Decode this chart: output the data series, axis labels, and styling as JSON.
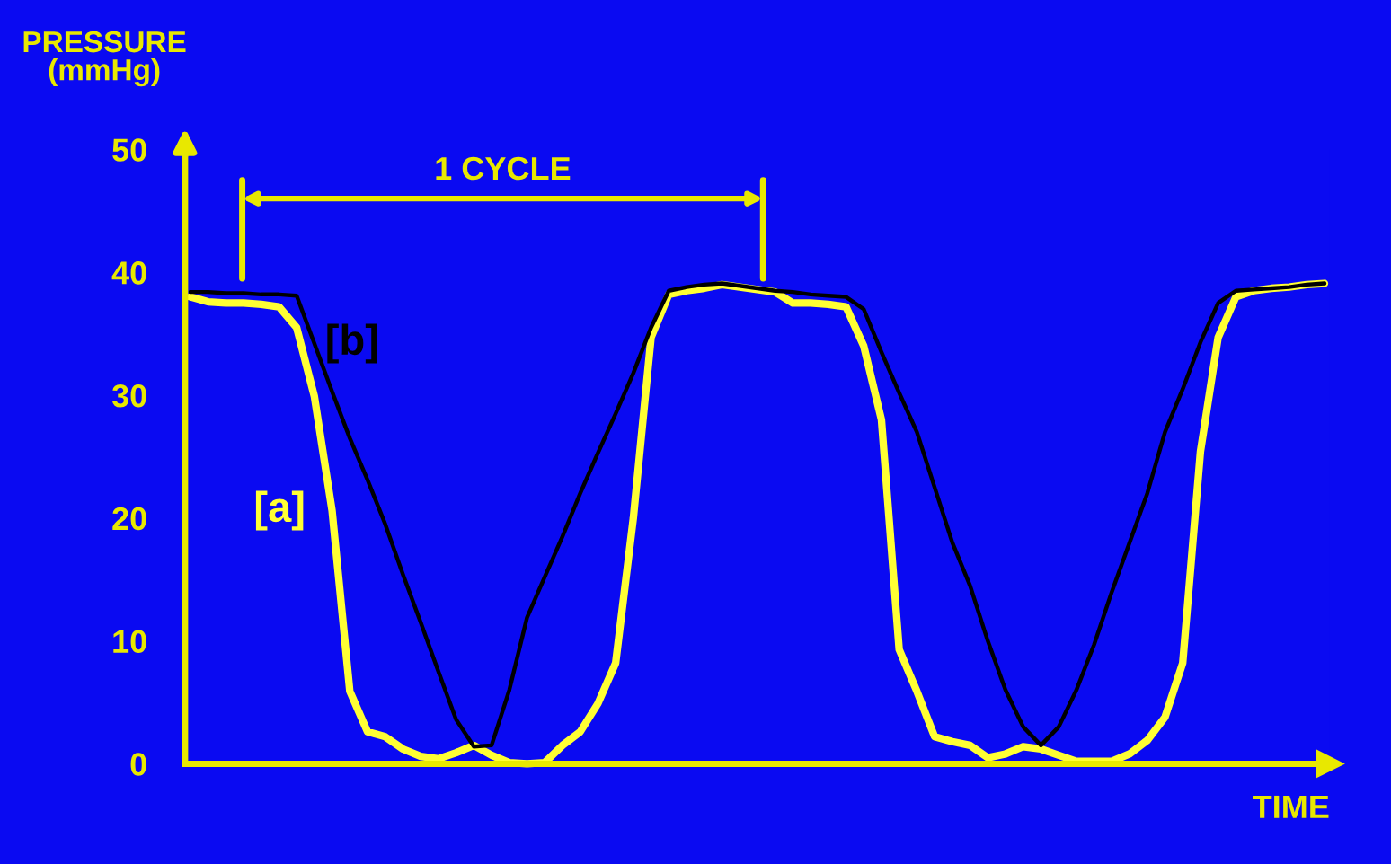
{
  "chart_data": {
    "type": "line",
    "ylabel": "PRESSURE\n(mmHg)",
    "xlabel": "TIME",
    "annotations": [
      "1 CYCLE"
    ],
    "categories": [
      null,
      null,
      null,
      null,
      null,
      null,
      null,
      null,
      null,
      null,
      null,
      null,
      null,
      null,
      null,
      null,
      null,
      null,
      null,
      null,
      null,
      null,
      null,
      null,
      null,
      null,
      null,
      null,
      null,
      null,
      null,
      null,
      null,
      null,
      null,
      null,
      null,
      null,
      null,
      null,
      null,
      null,
      null,
      null,
      null,
      null,
      null,
      null,
      null,
      null,
      null,
      null,
      null,
      null,
      null,
      null,
      null,
      null,
      null,
      null,
      null,
      null,
      null,
      null,
      null
    ],
    "series": [
      {
        "name": "[a]",
        "color": "#ffff33",
        "values": [
          38.0,
          37.6,
          37.5,
          37.5,
          37.4,
          37.2,
          35.5,
          29.9,
          20.6,
          5.9,
          2.6,
          2.2,
          1.2,
          0.6,
          0.4,
          0.9,
          1.5,
          0.7,
          0.1,
          0.0,
          0.1,
          1.5,
          2.6,
          4.9,
          8.2,
          20,
          34.7,
          38.2,
          38.5,
          38.7,
          39.0,
          38.8,
          38.6,
          38.4,
          37.5,
          37.5,
          37.4,
          37.2,
          34,
          28,
          9.3,
          5.9,
          2.2,
          1.8,
          1.5,
          0.5,
          0.8,
          1.4,
          1.2,
          0.7,
          0.2,
          0.2,
          0.2,
          0.8,
          1.9,
          3.8,
          8.2,
          25.4,
          34.7,
          38.0,
          38.5,
          38.7,
          38.8,
          39.0,
          39.1
        ]
      },
      {
        "name": "[b]",
        "color": "#000000",
        "values": [
          38.4,
          38.4,
          38.3,
          38.3,
          38.2,
          38.2,
          38.1,
          34.2,
          30.3,
          26.5,
          23.1,
          19.5,
          15.4,
          11.5,
          7.5,
          3.6,
          1.4,
          1.5,
          6.0,
          11.9,
          15.2,
          18.5,
          22,
          25.3,
          28.5,
          31.8,
          35.5,
          38.5,
          38.8,
          39.0,
          39.1,
          38.9,
          38.7,
          38.5,
          38.4,
          38.2,
          38.1,
          38.0,
          37.0,
          33.5,
          30.2,
          27,
          22.5,
          18,
          14.5,
          10,
          6,
          3,
          1.5,
          3.0,
          6,
          9.7,
          14,
          18,
          22,
          27,
          30.5,
          34.3,
          37.5,
          38.5,
          38.6,
          38.7,
          38.8,
          39.0,
          39.1
        ]
      }
    ],
    "ylim": [
      0,
      50
    ],
    "yticks": [
      0,
      10,
      20,
      30,
      40,
      50
    ],
    "tick_labels": "y"
  }
}
